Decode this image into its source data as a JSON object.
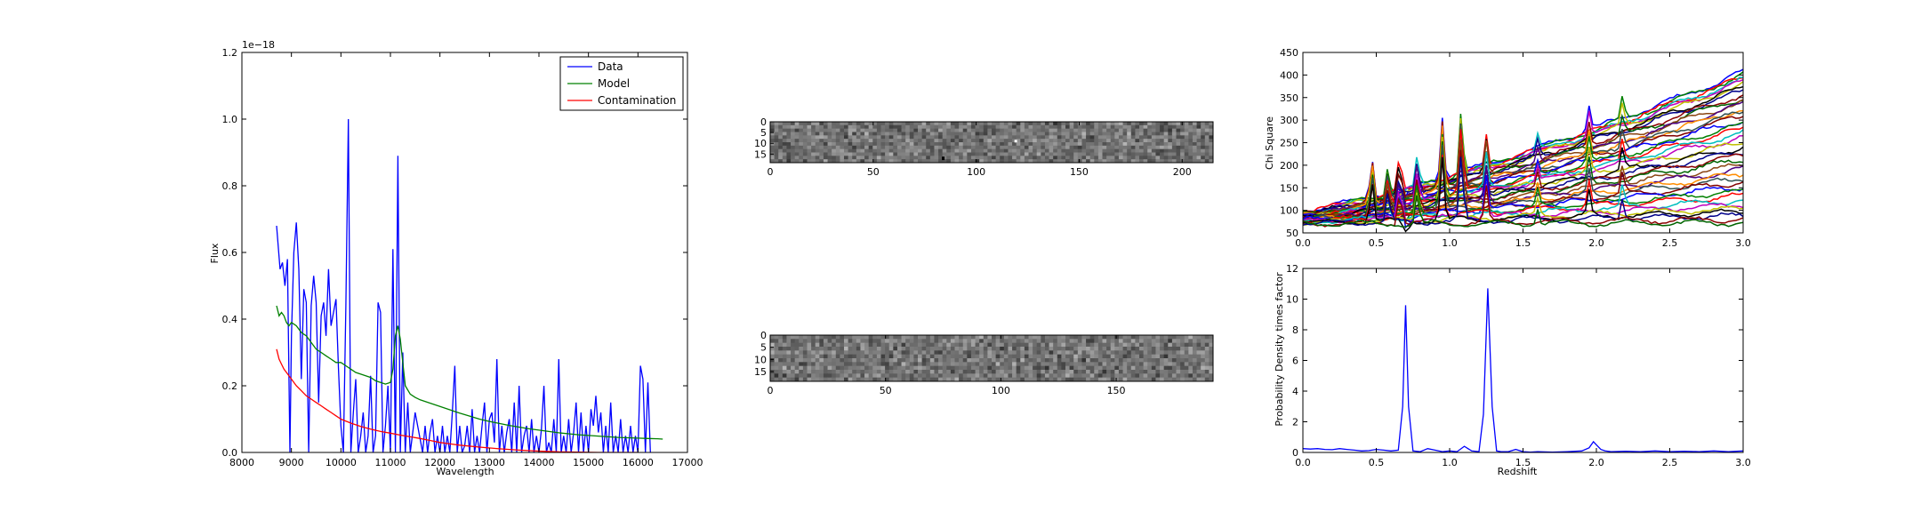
{
  "chart_data": [
    {
      "id": "spectrum",
      "type": "line",
      "xlabel": "Wavelength",
      "ylabel": "Flux",
      "y_offset_text": "1e−18",
      "xlim": [
        8000,
        17000
      ],
      "ylim": [
        0,
        1.2
      ],
      "xticks": [
        8000,
        9000,
        10000,
        11000,
        12000,
        13000,
        14000,
        15000,
        16000,
        17000
      ],
      "yticks": [
        0.0,
        0.2,
        0.4,
        0.6,
        0.8,
        1.0,
        1.2
      ],
      "ytick_labels": [
        "0.0",
        "0.2",
        "0.4",
        "0.6",
        "0.8",
        "1.0",
        "1.2"
      ],
      "legend_position": "top-right",
      "series": [
        {
          "name": "Data",
          "color": "#0000ff",
          "x": [
            8700,
            8770,
            8820,
            8870,
            8920,
            8970,
            9000,
            9050,
            9100,
            9150,
            9200,
            9250,
            9300,
            9350,
            9400,
            9450,
            9500,
            9550,
            9600,
            9650,
            9700,
            9750,
            9800,
            9850,
            9900,
            9950,
            10000,
            10050,
            10100,
            10150,
            10200,
            10250,
            10300,
            10350,
            10400,
            10450,
            10500,
            10550,
            10600,
            10650,
            10700,
            10750,
            10800,
            10850,
            10900,
            10950,
            11000,
            11050,
            11100,
            11150,
            11200,
            11250,
            11300,
            11350,
            11400,
            11450,
            11500,
            11550,
            11600,
            11650,
            11700,
            11750,
            11800,
            11850,
            11900,
            11950,
            12000,
            12050,
            12100,
            12150,
            12200,
            12250,
            12300,
            12350,
            12400,
            12450,
            12500,
            12550,
            12600,
            12650,
            12700,
            12750,
            12800,
            12850,
            12900,
            12950,
            13000,
            13050,
            13100,
            13150,
            13200,
            13250,
            13300,
            13350,
            13400,
            13450,
            13500,
            13550,
            13600,
            13650,
            13700,
            13750,
            13800,
            13850,
            13900,
            13950,
            14000,
            14050,
            14100,
            14150,
            14200,
            14250,
            14300,
            14350,
            14400,
            14450,
            14500,
            14550,
            14600,
            14650,
            14700,
            14750,
            14800,
            14850,
            14900,
            14950,
            15000,
            15050,
            15100,
            15150,
            15200,
            15250,
            15300,
            15350,
            15400,
            15450,
            15500,
            15550,
            15600,
            15650,
            15700,
            15750,
            15800,
            15850,
            15900,
            15950,
            16000,
            16050,
            16100,
            16150,
            16200,
            16250
          ],
          "y": [
            0.68,
            0.55,
            0.57,
            0.5,
            0.58,
            0.0,
            0.35,
            0.6,
            0.69,
            0.55,
            0.22,
            0.49,
            0.45,
            0.0,
            0.44,
            0.53,
            0.45,
            0.15,
            0.41,
            0.45,
            0.35,
            0.55,
            0.38,
            0.42,
            0.46,
            0.25,
            0.08,
            0.0,
            0.44,
            1.0,
            0.0,
            0.12,
            0.22,
            0.0,
            0.05,
            0.12,
            0.0,
            0.05,
            0.23,
            0.0,
            0.05,
            0.45,
            0.42,
            0.0,
            0.08,
            0.2,
            0.0,
            0.61,
            0.0,
            0.89,
            0.0,
            0.3,
            0.0,
            0.15,
            0.0,
            0.06,
            0.12,
            0.08,
            0.04,
            0.0,
            0.08,
            0.0,
            0.06,
            0.1,
            0.0,
            0.05,
            0.0,
            0.08,
            0.0,
            0.05,
            0.0,
            0.12,
            0.26,
            0.0,
            0.08,
            0.0,
            0.02,
            0.08,
            0.0,
            0.13,
            0.0,
            0.05,
            0.0,
            0.08,
            0.15,
            0.0,
            0.1,
            0.12,
            0.03,
            0.28,
            0.0,
            0.08,
            0.0,
            0.06,
            0.1,
            0.0,
            0.15,
            0.0,
            0.2,
            0.0,
            0.05,
            0.08,
            0.0,
            0.1,
            0.0,
            0.05,
            0.0,
            0.07,
            0.2,
            0.0,
            0.03,
            0.0,
            0.1,
            0.0,
            0.28,
            0.0,
            0.05,
            0.0,
            0.1,
            0.0,
            0.06,
            0.15,
            0.0,
            0.12,
            0.0,
            0.08,
            0.0,
            0.13,
            0.08,
            0.17,
            0.06,
            0.12,
            0.0,
            0.08,
            0.0,
            0.15,
            0.0,
            0.05,
            0.0,
            0.1,
            0.0,
            0.05,
            0.0,
            0.08,
            0.0,
            0.05,
            0.0,
            0.26,
            0.22,
            0.0,
            0.21,
            0.0
          ]
        },
        {
          "name": "Model",
          "color": "#008000",
          "x": [
            8700,
            8750,
            8800,
            8850,
            8900,
            8950,
            9000,
            9100,
            9200,
            9300,
            9400,
            9500,
            9600,
            9700,
            9800,
            9900,
            10000,
            10100,
            10200,
            10300,
            10400,
            10500,
            10600,
            10700,
            10800,
            10900,
            11000,
            11050,
            11100,
            11150,
            11200,
            11250,
            11300,
            11400,
            11500,
            11600,
            11800,
            12000,
            12200,
            12400,
            12600,
            12800,
            13000,
            13200,
            13400,
            13600,
            13800,
            14000,
            14200,
            14400,
            14600,
            14800,
            15000,
            15200,
            15400,
            15600,
            15800,
            16000,
            16200,
            16400,
            16500
          ],
          "y": [
            0.44,
            0.41,
            0.42,
            0.41,
            0.39,
            0.38,
            0.39,
            0.38,
            0.36,
            0.35,
            0.33,
            0.31,
            0.3,
            0.29,
            0.28,
            0.27,
            0.27,
            0.26,
            0.25,
            0.24,
            0.235,
            0.23,
            0.225,
            0.215,
            0.21,
            0.205,
            0.21,
            0.25,
            0.35,
            0.38,
            0.34,
            0.27,
            0.2,
            0.175,
            0.165,
            0.158,
            0.148,
            0.138,
            0.128,
            0.118,
            0.109,
            0.1,
            0.093,
            0.087,
            0.081,
            0.076,
            0.071,
            0.067,
            0.063,
            0.059,
            0.056,
            0.053,
            0.051,
            0.049,
            0.047,
            0.045,
            0.044,
            0.043,
            0.042,
            0.041,
            0.04
          ]
        },
        {
          "name": "Contamination",
          "color": "#ff0000",
          "x": [
            8700,
            8750,
            8800,
            8850,
            8900,
            8950,
            9000,
            9100,
            9200,
            9300,
            9400,
            9500,
            9600,
            9700,
            9800,
            9900,
            10000,
            10200,
            10400,
            10600,
            10800,
            11000,
            11200,
            11400,
            11600,
            11800,
            12000,
            12400,
            12800,
            13200,
            13600,
            14000,
            14400,
            14800,
            15200,
            15600,
            16000
          ],
          "y": [
            0.31,
            0.28,
            0.265,
            0.25,
            0.24,
            0.23,
            0.22,
            0.2,
            0.185,
            0.17,
            0.16,
            0.15,
            0.14,
            0.13,
            0.12,
            0.11,
            0.1,
            0.088,
            0.078,
            0.07,
            0.063,
            0.058,
            0.052,
            0.047,
            0.042,
            0.036,
            0.03,
            0.022,
            0.016,
            0.011,
            0.007,
            0.004,
            0.002,
            0.001,
            0.0,
            0.0,
            0.0
          ]
        }
      ]
    },
    {
      "id": "image-top",
      "type": "heatmap",
      "colormap": "gray",
      "xlim": [
        0,
        215
      ],
      "ylim": [
        19,
        0
      ],
      "xticks": [
        0,
        50,
        100,
        150,
        200
      ],
      "yticks": [
        0,
        5,
        10,
        15
      ]
    },
    {
      "id": "image-bottom",
      "type": "heatmap",
      "colormap": "gray",
      "xlim": [
        0,
        192
      ],
      "ylim": [
        19,
        0
      ],
      "xticks": [
        0,
        50,
        100,
        150
      ],
      "yticks": [
        0,
        5,
        10,
        15
      ]
    },
    {
      "id": "chisq",
      "type": "line",
      "ylabel": "Chi Square",
      "xlim": [
        0.0,
        3.0
      ],
      "ylim": [
        50,
        450
      ],
      "xticks": [
        0.0,
        0.5,
        1.0,
        1.5,
        2.0,
        2.5,
        3.0
      ],
      "xtick_labels": [
        "0.0",
        "0.5",
        "1.0",
        "1.5",
        "2.0",
        "2.5",
        "3.0"
      ],
      "yticks": [
        50,
        100,
        150,
        200,
        250,
        300,
        350,
        400,
        450
      ],
      "series_count": 40,
      "end_values": [
        405,
        400,
        395,
        390,
        385,
        380,
        372,
        365,
        357,
        350,
        342,
        335,
        325,
        318,
        310,
        300,
        290,
        280,
        272,
        262,
        250,
        240,
        230,
        222,
        212,
        200,
        190,
        180,
        170,
        162,
        152,
        142,
        132,
        122,
        112,
        104,
        96,
        88,
        80,
        72
      ],
      "start_values": [
        100,
        98,
        97,
        96,
        95,
        94,
        93,
        92,
        91,
        90,
        89,
        88,
        87,
        86,
        86,
        85,
        85,
        84,
        84,
        83,
        83,
        82,
        82,
        81,
        81,
        80,
        80,
        79,
        79,
        78,
        78,
        77,
        77,
        76,
        75,
        74,
        73,
        72,
        71,
        70
      ],
      "peak_x": [
        0.47,
        0.58,
        0.66,
        0.78,
        0.95,
        1.08,
        1.25,
        1.6,
        1.95,
        2.18
      ],
      "peak_heights": [
        130,
        90,
        110,
        95,
        200,
        210,
        110,
        50,
        80,
        70
      ],
      "colors": [
        "#0000ff",
        "#008000",
        "#ff0000",
        "#00bfbf",
        "#bf00bf",
        "#bfbf00",
        "#000000",
        "#00008b",
        "#8b0000",
        "#006400",
        "#8b4513",
        "#4b0082",
        "#ff8c00",
        "#2f4f4f",
        "#800000"
      ]
    },
    {
      "id": "pdf",
      "type": "line",
      "xlabel": "Redshift",
      "ylabel": "Probability Density times factor",
      "xlim": [
        0.0,
        3.0
      ],
      "ylim": [
        0,
        12
      ],
      "xticks": [
        0.0,
        0.5,
        1.0,
        1.5,
        2.0,
        2.5,
        3.0
      ],
      "xtick_labels": [
        "0.0",
        "0.5",
        "1.0",
        "1.5",
        "2.0",
        "2.5",
        "3.0"
      ],
      "yticks": [
        0,
        2,
        4,
        6,
        8,
        10,
        12
      ],
      "series": [
        {
          "color": "#0000ff",
          "x": [
            0.0,
            0.05,
            0.1,
            0.15,
            0.2,
            0.25,
            0.3,
            0.35,
            0.4,
            0.45,
            0.5,
            0.55,
            0.6,
            0.65,
            0.68,
            0.7,
            0.72,
            0.75,
            0.8,
            0.85,
            0.9,
            0.95,
            1.0,
            1.05,
            1.1,
            1.15,
            1.2,
            1.23,
            1.26,
            1.29,
            1.32,
            1.35,
            1.4,
            1.45,
            1.5,
            1.55,
            1.6,
            1.7,
            1.8,
            1.9,
            1.95,
            1.98,
            2.0,
            2.03,
            2.06,
            2.1,
            2.2,
            2.3,
            2.4,
            2.5,
            2.6,
            2.7,
            2.8,
            2.9,
            3.0
          ],
          "y": [
            0.25,
            0.22,
            0.25,
            0.2,
            0.18,
            0.25,
            0.2,
            0.15,
            0.1,
            0.12,
            0.2,
            0.15,
            0.1,
            0.15,
            3.0,
            9.6,
            3.0,
            0.1,
            0.05,
            0.25,
            0.15,
            0.05,
            0.1,
            0.05,
            0.4,
            0.1,
            0.05,
            2.5,
            10.7,
            3.0,
            0.1,
            0.05,
            0.05,
            0.2,
            0.05,
            0.02,
            0.05,
            0.02,
            0.05,
            0.1,
            0.3,
            0.7,
            0.5,
            0.2,
            0.1,
            0.05,
            0.08,
            0.05,
            0.1,
            0.05,
            0.08,
            0.05,
            0.1,
            0.05,
            0.1
          ]
        }
      ]
    }
  ]
}
